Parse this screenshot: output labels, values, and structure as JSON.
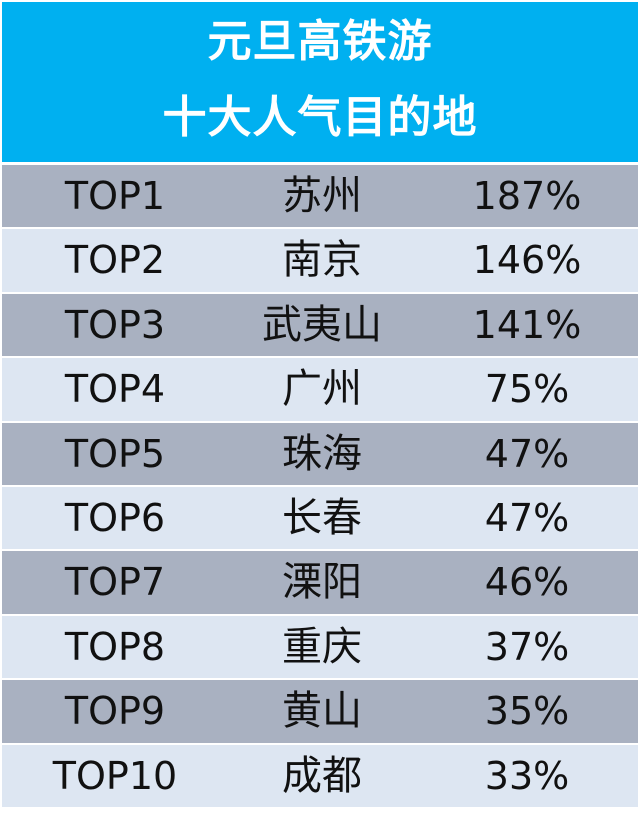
{
  "title_lines": [
    "元旦高铁游",
    "十大人气目的地"
  ],
  "colors": {
    "header_bg": "#00b0f0",
    "header_text": "#ffffff",
    "row_dark": "#a9b1c1",
    "row_light": "#dde6f2",
    "cell_text": "#111111"
  },
  "chart_data": {
    "type": "table",
    "title": "元旦高铁游 十大人气目的地",
    "columns": [
      "rank",
      "city",
      "percent"
    ],
    "rows": [
      {
        "rank": "TOP1",
        "city": "苏州",
        "percent": "187%",
        "value": 187
      },
      {
        "rank": "TOP2",
        "city": "南京",
        "percent": "146%",
        "value": 146
      },
      {
        "rank": "TOP3",
        "city": "武夷山",
        "percent": "141%",
        "value": 141
      },
      {
        "rank": "TOP4",
        "city": "广州",
        "percent": "75%",
        "value": 75
      },
      {
        "rank": "TOP5",
        "city": "珠海",
        "percent": "47%",
        "value": 47
      },
      {
        "rank": "TOP6",
        "city": "长春",
        "percent": "47%",
        "value": 47
      },
      {
        "rank": "TOP7",
        "city": "溧阳",
        "percent": "46%",
        "value": 46
      },
      {
        "rank": "TOP8",
        "city": "重庆",
        "percent": "37%",
        "value": 37
      },
      {
        "rank": "TOP9",
        "city": "黄山",
        "percent": "35%",
        "value": 35
      },
      {
        "rank": "TOP10",
        "city": "成都",
        "percent": "33%",
        "value": 33
      }
    ]
  }
}
